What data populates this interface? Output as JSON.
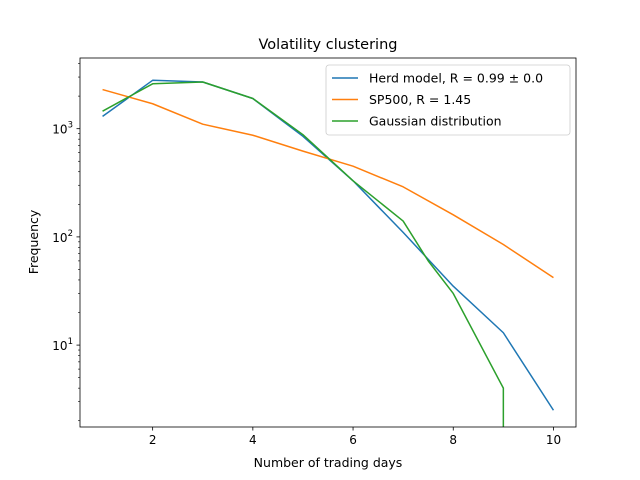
{
  "chart_data": {
    "type": "line",
    "title": "Volatility clustering",
    "xlabel": "Number of trading days",
    "ylabel": "Frequency",
    "xscale": "linear",
    "yscale": "log",
    "xlim": [
      0.55,
      10.45
    ],
    "ylim": [
      1.75,
      4500
    ],
    "xticks": [
      2,
      4,
      6,
      8,
      10
    ],
    "xtick_labels": [
      "2",
      "4",
      "6",
      "8",
      "10"
    ],
    "yticks": [
      10,
      100,
      1000
    ],
    "ytick_labels": [
      "10^1",
      "10^2",
      "10^3"
    ],
    "grid": false,
    "legend_position": "top-right",
    "series": [
      {
        "name": "Herd model, R = 0.99 ± 0.0",
        "color": "#1f77b4",
        "x": [
          1,
          2,
          3,
          4,
          5,
          6,
          7,
          8,
          9,
          10
        ],
        "y": [
          1300,
          2800,
          2700,
          1900,
          850,
          330,
          110,
          35,
          13,
          2.5
        ]
      },
      {
        "name": "SP500, R = 1.45",
        "color": "#ff7f0e",
        "x": [
          1,
          2,
          3,
          4,
          5,
          6,
          7,
          8,
          9,
          10
        ],
        "y": [
          2300,
          1700,
          1100,
          870,
          620,
          450,
          290,
          160,
          85,
          42
        ]
      },
      {
        "name": "Gaussian distribution",
        "color": "#2ca02c",
        "x": [
          1,
          2,
          3,
          4,
          5,
          6,
          7,
          7.5,
          8,
          9,
          9
        ],
        "y": [
          1450,
          2600,
          2700,
          1900,
          880,
          330,
          140,
          60,
          30,
          4,
          1.75
        ]
      }
    ]
  }
}
